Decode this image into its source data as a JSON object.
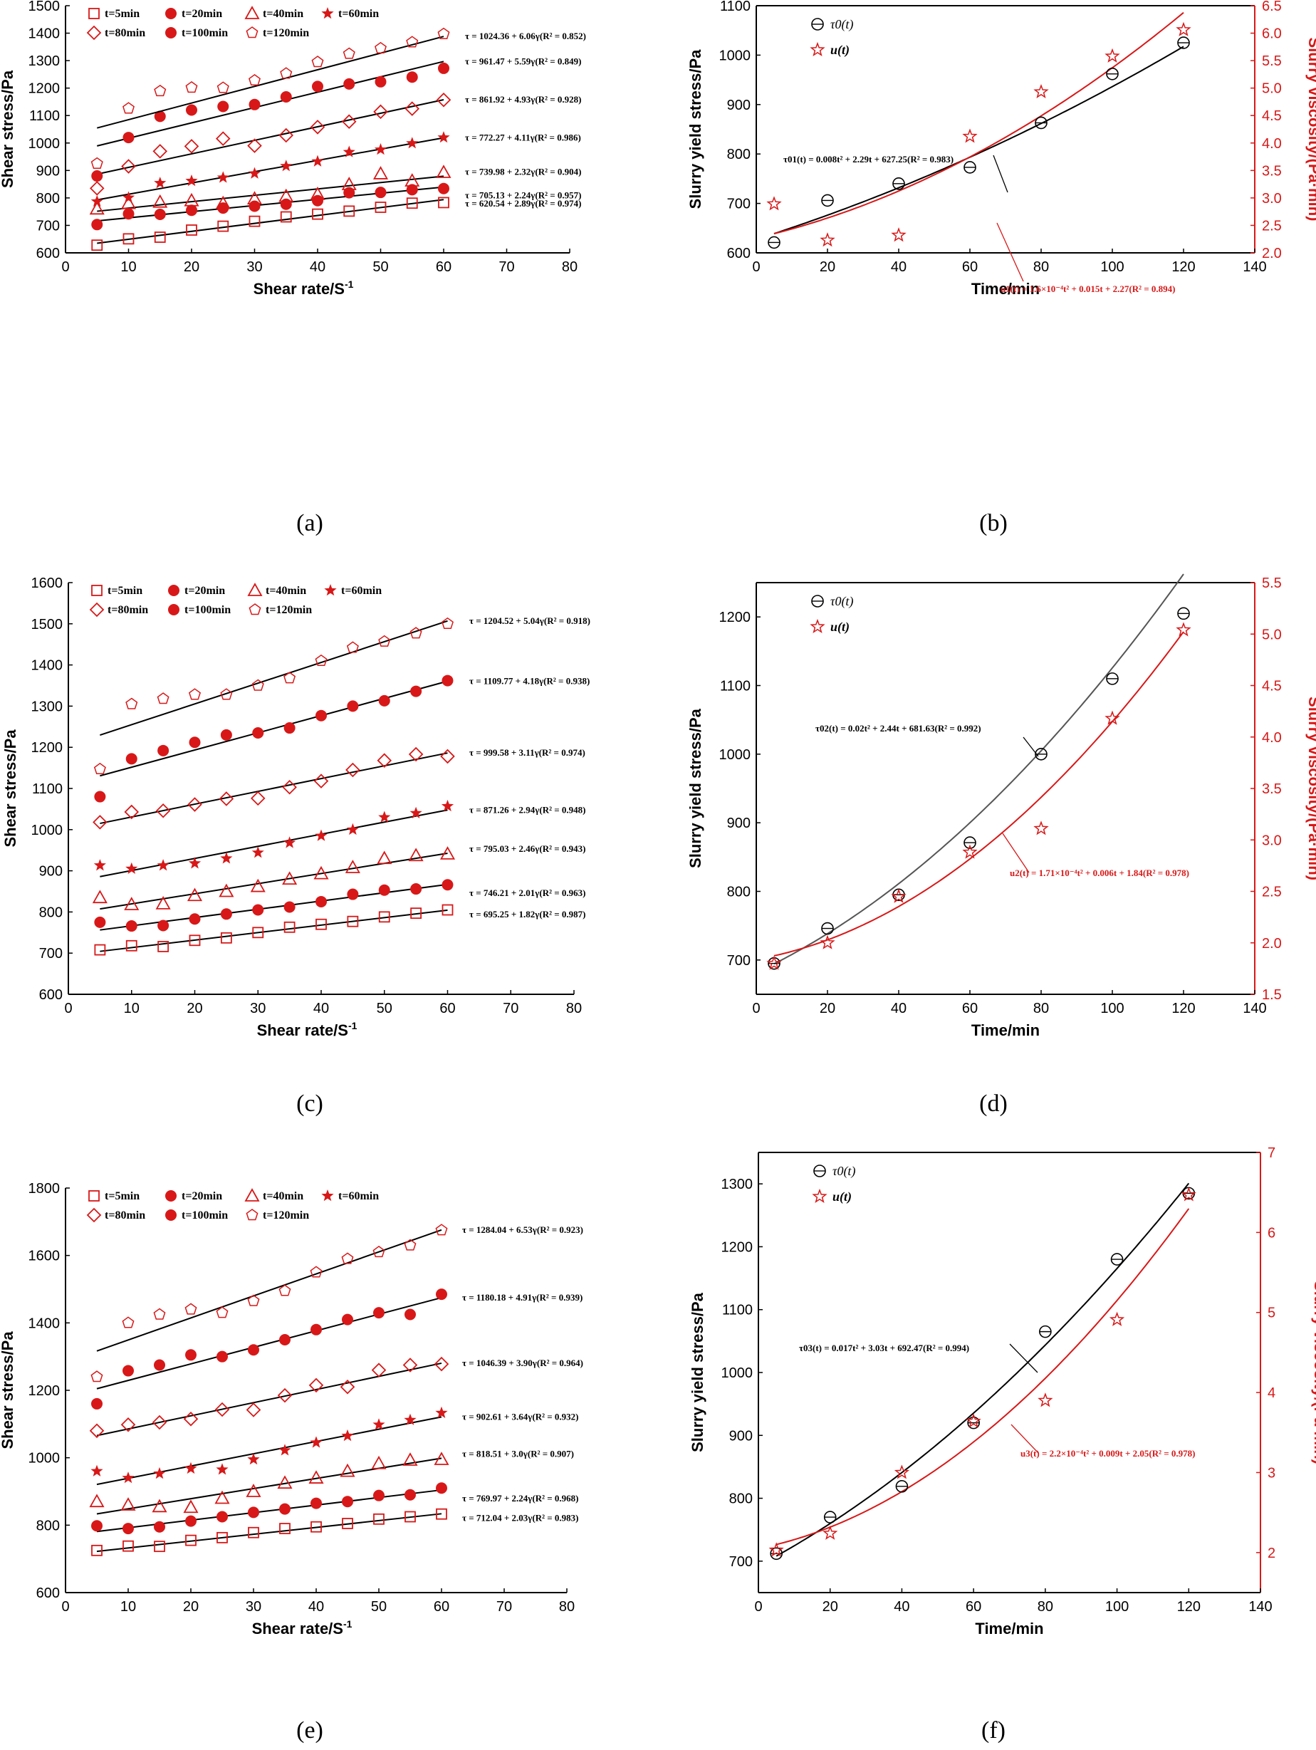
{
  "colors": {
    "black": "#000000",
    "red": "#d81818",
    "grey": "#555555"
  },
  "chart_data": [
    {
      "id": "a",
      "type": "scatter",
      "panel_label": "(a)",
      "xlabel": "Shear rate/S",
      "xlabel_sup": "-1",
      "ylabel": "Shear stress/Pa",
      "xlim": [
        0,
        80
      ],
      "xticks": [
        0,
        10,
        20,
        30,
        40,
        50,
        60,
        70,
        80
      ],
      "ylim": [
        600,
        1500
      ],
      "yticks": [
        600,
        700,
        800,
        900,
        1000,
        1100,
        1200,
        1300,
        1400,
        1500
      ],
      "x": [
        5,
        10,
        15,
        20,
        25,
        30,
        35,
        40,
        45,
        50,
        55,
        60
      ],
      "legend": [
        "t=5min",
        "t=20min",
        "t=40min",
        "t=60min",
        "t=80min",
        "t=100min",
        "t=120min"
      ],
      "series": [
        {
          "name": "t=5min",
          "marker": "square-open",
          "fit": [
            620.54,
            2.89
          ],
          "equation": "τ = 620.54 + 2.89γ(R² = 0.974)",
          "values": [
            628,
            651,
            657,
            683,
            697,
            715,
            731,
            741,
            752,
            766,
            781,
            783
          ]
        },
        {
          "name": "t=20min",
          "marker": "circle-filled",
          "fit": [
            705.13,
            2.24
          ],
          "equation": "τ = 705.13 + 2.24γ(R² = 0.957)",
          "values": [
            703,
            742,
            740,
            755,
            763,
            770,
            777,
            790,
            819,
            820,
            830,
            834
          ]
        },
        {
          "name": "t=40min",
          "marker": "triangle-open",
          "fit": [
            739.98,
            2.32
          ],
          "equation": "τ = 739.98 + 2.32γ(R² = 0.904)",
          "values": [
            760,
            780,
            785,
            790,
            780,
            797,
            806,
            813,
            849,
            888,
            862,
            893
          ]
        },
        {
          "name": "t=60min",
          "marker": "star-filled",
          "fit": [
            772.27,
            4.11
          ],
          "equation": "τ = 772.27 + 4.11γ(R² = 0.986)",
          "values": [
            787,
            801,
            854,
            862,
            874,
            889,
            916,
            933,
            967,
            976,
            999,
            1020
          ]
        },
        {
          "name": "t=80min",
          "marker": "diamond-open",
          "fit": [
            861.92,
            4.93
          ],
          "equation": "τ = 861.92 + 4.93γ(R² = 0.928)",
          "values": [
            835,
            915,
            970,
            988,
            1016,
            990,
            1028,
            1058,
            1078,
            1114,
            1125,
            1157
          ]
        },
        {
          "name": "t=100min",
          "marker": "circle-filled",
          "fit": [
            961.47,
            5.59
          ],
          "equation": "τ = 961.47 + 5.59γ(R² = 0.849)",
          "values": [
            880,
            1020,
            1097,
            1120,
            1133,
            1140,
            1168,
            1206,
            1215,
            1223,
            1240,
            1272
          ]
        },
        {
          "name": "t=120min",
          "marker": "pentagon-open",
          "fit": [
            1024.36,
            6.06
          ],
          "equation": "τ = 1024.36 + 6.06γ(R² = 0.852)",
          "values": [
            925,
            1126,
            1189,
            1202,
            1201,
            1228,
            1253,
            1295,
            1325,
            1345,
            1367,
            1397
          ]
        }
      ]
    },
    {
      "id": "b",
      "type": "scatter",
      "panel_label": "(b)",
      "xlabel": "Time/min",
      "ylabel": "Slurry yield stress/Pa",
      "y2label": "Slurry viscosity/(Pa·min)",
      "xlim": [
        0,
        140
      ],
      "xticks": [
        0,
        20,
        40,
        60,
        80,
        100,
        120,
        140
      ],
      "ylim": [
        600,
        1100
      ],
      "yticks": [
        600,
        700,
        800,
        900,
        1000,
        1100
      ],
      "y2lim": [
        2.0,
        6.5
      ],
      "y2ticks": [
        2.0,
        2.5,
        3.0,
        3.5,
        4.0,
        4.5,
        5.0,
        5.5,
        6.0,
        6.5
      ],
      "legend": [
        "τ0(t)",
        "u(t)"
      ],
      "x": [
        5,
        20,
        40,
        60,
        80,
        100,
        120
      ],
      "yield_stress": [
        621,
        706,
        740,
        773,
        863,
        962,
        1025
      ],
      "viscosity": [
        2.89,
        2.23,
        2.32,
        4.12,
        4.93,
        5.58,
        6.06
      ],
      "yield_fit": [
        0.008,
        2.29,
        627.25
      ],
      "visc_fit": [
        0.00016,
        0.015,
        2.27
      ],
      "eq_black": "τ01(t) = 0.008t² + 2.29t + 627.25(R² = 0.983)",
      "eq_red": "u1(t) = 1.6×10⁻⁴t² + 0.015t + 2.27(R² = 0.894)"
    },
    {
      "id": "c",
      "type": "scatter",
      "panel_label": "(c)",
      "xlabel": "Shear rate/S",
      "xlabel_sup": "-1",
      "ylabel": "Shear stress/Pa",
      "xlim": [
        0,
        80
      ],
      "xticks": [
        0,
        10,
        20,
        30,
        40,
        50,
        60,
        70,
        80
      ],
      "ylim": [
        600,
        1600
      ],
      "yticks": [
        600,
        700,
        800,
        900,
        1000,
        1100,
        1200,
        1300,
        1400,
        1500,
        1600
      ],
      "x": [
        5,
        10,
        15,
        20,
        25,
        30,
        35,
        40,
        45,
        50,
        55,
        60
      ],
      "legend": [
        "t=5min",
        "t=20min",
        "t=40min",
        "t=60min",
        "t=80min",
        "t=100min",
        "t=120min"
      ],
      "series": [
        {
          "name": "t=5min",
          "marker": "square-open",
          "fit": [
            695.25,
            1.82
          ],
          "equation": "τ = 695.25 + 1.82γ(R² = 0.987)",
          "values": [
            708,
            718,
            716,
            731,
            737,
            750,
            763,
            770,
            777,
            788,
            797,
            805
          ]
        },
        {
          "name": "t=20min",
          "marker": "circle-filled",
          "fit": [
            746.21,
            2.01
          ],
          "equation": "τ = 746.21 + 2.01γ(R² = 0.963)",
          "values": [
            775,
            766,
            767,
            783,
            795,
            805,
            812,
            825,
            843,
            853,
            856,
            866
          ]
        },
        {
          "name": "t=40min",
          "marker": "triangle-open",
          "fit": [
            795.03,
            2.46
          ],
          "equation": "τ = 795.03 + 2.46γ(R² = 0.943)",
          "values": [
            835,
            818,
            820,
            840,
            850,
            862,
            880,
            893,
            908,
            930,
            937,
            941
          ]
        },
        {
          "name": "t=60min",
          "marker": "star-filled",
          "fit": [
            871.26,
            2.94
          ],
          "equation": "τ = 871.26 + 2.94γ(R² = 0.948)",
          "values": [
            913,
            905,
            913,
            918,
            930,
            944,
            968,
            985,
            1000,
            1030,
            1040,
            1057
          ]
        },
        {
          "name": "t=80min",
          "marker": "diamond-open",
          "fit": [
            999.58,
            3.11
          ],
          "equation": "τ = 999.58 + 3.11γ(R² = 0.974)",
          "values": [
            1018,
            1043,
            1046,
            1061,
            1075,
            1076,
            1103,
            1118,
            1145,
            1168,
            1183,
            1178
          ]
        },
        {
          "name": "t=100min",
          "marker": "circle-filled",
          "fit": [
            1109.77,
            4.18
          ],
          "equation": "τ = 1109.77 + 4.18γ(R² = 0.938)",
          "values": [
            1080,
            1172,
            1192,
            1212,
            1230,
            1235,
            1247,
            1277,
            1300,
            1313,
            1336,
            1362
          ]
        },
        {
          "name": "t=120min",
          "marker": "pentagon-open",
          "fit": [
            1204.52,
            5.04
          ],
          "equation": "τ = 1204.52 + 5.04γ(R² = 0.918)",
          "values": [
            1147,
            1305,
            1318,
            1328,
            1328,
            1350,
            1368,
            1410,
            1442,
            1457,
            1477,
            1500
          ]
        }
      ]
    },
    {
      "id": "d",
      "type": "scatter",
      "panel_label": "(d)",
      "xlabel": "Time/min",
      "ylabel": "Slurry yield stress/Pa",
      "y2label": "Slurry viscosity/(Pa·min)",
      "xlim": [
        0,
        140
      ],
      "xticks": [
        0,
        20,
        40,
        60,
        80,
        100,
        120,
        140
      ],
      "ylim": [
        650,
        1250
      ],
      "yticks": [
        700,
        800,
        900,
        1000,
        1100,
        1200
      ],
      "y2lim": [
        1.5,
        5.5
      ],
      "y2ticks": [
        1.5,
        2.0,
        2.5,
        3.0,
        3.5,
        4.0,
        4.5,
        5.0,
        5.5
      ],
      "legend": [
        "τ0(t)",
        "u(t)"
      ],
      "x": [
        5,
        20,
        40,
        60,
        80,
        100,
        120
      ],
      "yield_stress": [
        695,
        746,
        795,
        871,
        1000,
        1110,
        1205
      ],
      "viscosity": [
        1.8,
        2.0,
        2.45,
        2.88,
        3.11,
        4.18,
        5.04
      ],
      "yield_fit": [
        0.02,
        2.44,
        681.63
      ],
      "visc_fit": [
        0.000171,
        0.006,
        1.84
      ],
      "eq_black": "τ02(t) = 0.02t² + 2.44t + 681.63(R² = 0.992)",
      "eq_red": "u2(t) = 1.71×10⁻⁴t² + 0.006t + 1.84(R² = 0.978)"
    },
    {
      "id": "e",
      "type": "scatter",
      "panel_label": "(e)",
      "xlabel": "Shear rate/S",
      "xlabel_sup": "-1",
      "ylabel": "Shear stress/Pa",
      "xlim": [
        0,
        80
      ],
      "xticks": [
        0,
        10,
        20,
        30,
        40,
        50,
        60,
        70,
        80
      ],
      "ylim": [
        600,
        1800
      ],
      "yticks": [
        600,
        800,
        1000,
        1200,
        1400,
        1600,
        1800
      ],
      "x": [
        5,
        10,
        15,
        20,
        25,
        30,
        35,
        40,
        45,
        50,
        55,
        60
      ],
      "legend": [
        "t=5min",
        "t=20min",
        "t=40min",
        "t=60min",
        "t=80min",
        "t=100min",
        "t=120min"
      ],
      "series": [
        {
          "name": "t=5min",
          "marker": "square-open",
          "fit": [
            712.04,
            2.03
          ],
          "equation": "τ = 712.04 + 2.03γ(R² = 0.983)",
          "values": [
            725,
            738,
            737,
            755,
            763,
            778,
            790,
            795,
            805,
            818,
            825,
            833
          ]
        },
        {
          "name": "t=20min",
          "marker": "circle-filled",
          "fit": [
            769.97,
            2.24
          ],
          "equation": "τ = 769.97 + 2.24γ(R² = 0.968)",
          "values": [
            798,
            790,
            795,
            812,
            825,
            838,
            848,
            865,
            870,
            888,
            890,
            910
          ]
        },
        {
          "name": "t=40min",
          "marker": "triangle-open",
          "fit": [
            818.51,
            3.0
          ],
          "equation": "τ = 818.51 + 3.0γ(R² = 0.907)",
          "values": [
            870,
            860,
            855,
            853,
            880,
            900,
            925,
            940,
            960,
            983,
            993,
            995
          ]
        },
        {
          "name": "t=60min",
          "marker": "star-filled",
          "fit": [
            902.61,
            3.64
          ],
          "equation": "τ = 902.61 + 3.64γ(R² = 0.932)",
          "values": [
            960,
            940,
            953,
            968,
            965,
            995,
            1022,
            1045,
            1065,
            1098,
            1112,
            1133
          ]
        },
        {
          "name": "t=80min",
          "marker": "diamond-open",
          "fit": [
            1046.39,
            3.9
          ],
          "equation": "τ = 1046.39 + 3.90γ(R² = 0.964)",
          "values": [
            1080,
            1098,
            1105,
            1115,
            1143,
            1142,
            1185,
            1215,
            1210,
            1260,
            1275,
            1278
          ]
        },
        {
          "name": "t=100min",
          "marker": "circle-filled",
          "fit": [
            1180.18,
            4.91
          ],
          "equation": "τ = 1180.18 + 4.91γ(R² = 0.939)",
          "values": [
            1160,
            1258,
            1275,
            1305,
            1300,
            1320,
            1350,
            1380,
            1410,
            1430,
            1425,
            1485
          ]
        },
        {
          "name": "t=120min",
          "marker": "pentagon-open",
          "fit": [
            1284.04,
            6.53
          ],
          "equation": "τ = 1284.04 + 6.53γ(R² = 0.923)",
          "values": [
            1240,
            1400,
            1425,
            1440,
            1430,
            1465,
            1495,
            1550,
            1590,
            1610,
            1630,
            1675
          ]
        }
      ]
    },
    {
      "id": "f",
      "type": "scatter",
      "panel_label": "(f)",
      "xlabel": "Time/min",
      "ylabel": "Slurry yield stress/Pa",
      "y2label": "Slurry viscosity/(Pa·min)",
      "xlim": [
        0,
        140
      ],
      "xticks": [
        0,
        20,
        40,
        60,
        80,
        100,
        120,
        140
      ],
      "ylim": [
        650,
        1350
      ],
      "yticks": [
        700,
        800,
        900,
        1000,
        1100,
        1200,
        1300
      ],
      "y2lim": [
        1.5,
        7.0
      ],
      "y2ticks": [
        2,
        3,
        4,
        5,
        6,
        7
      ],
      "legend": [
        "τ0(t)",
        "u(t)"
      ],
      "x": [
        5,
        20,
        40,
        60,
        80,
        100,
        120
      ],
      "yield_stress": [
        712,
        770,
        819,
        920,
        1065,
        1180,
        1285
      ],
      "viscosity": [
        2.03,
        2.24,
        3.0,
        3.64,
        3.9,
        4.91,
        6.47
      ],
      "yield_fit": [
        0.017,
        3.03,
        692.47
      ],
      "visc_fit": [
        0.00022,
        0.009,
        2.05
      ],
      "eq_black": "τ03(t) = 0.017t² + 3.03t + 692.47(R² = 0.994)",
      "eq_red": "u3(t) = 2.2×10⁻⁴t² + 0.009t + 2.05(R² = 0.978)"
    }
  ]
}
